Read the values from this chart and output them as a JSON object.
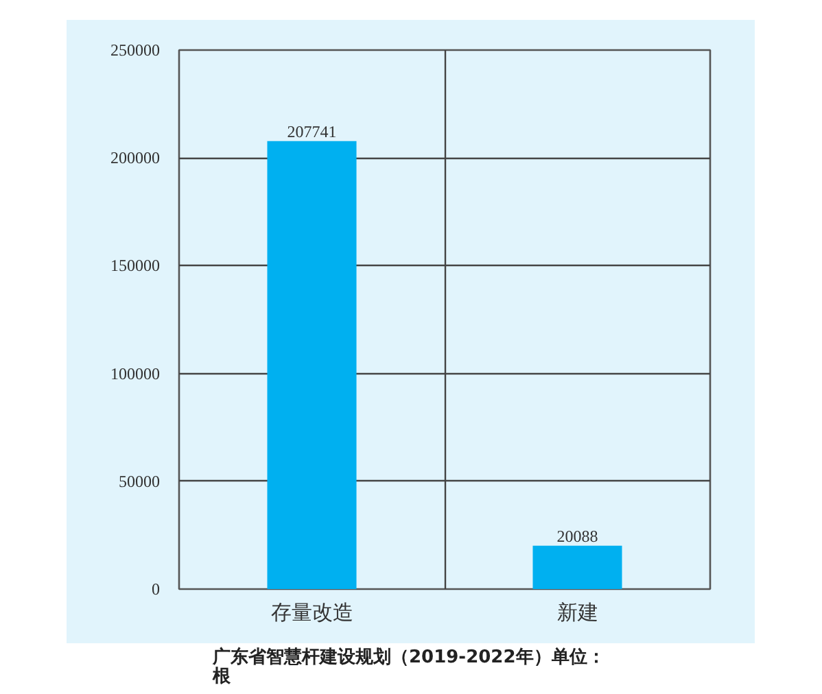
{
  "chart_data": {
    "type": "bar",
    "title": "广东省智慧杆建设规划（2019-2022年）单位：根",
    "categories": [
      "存量改造",
      "新建"
    ],
    "values": [
      207741,
      20088
    ],
    "color": "#00b0f0",
    "ylim": [
      0,
      250000
    ],
    "yticks": [
      0,
      50000,
      100000,
      150000,
      200000,
      250000
    ],
    "grid": true,
    "data_labels": true
  }
}
